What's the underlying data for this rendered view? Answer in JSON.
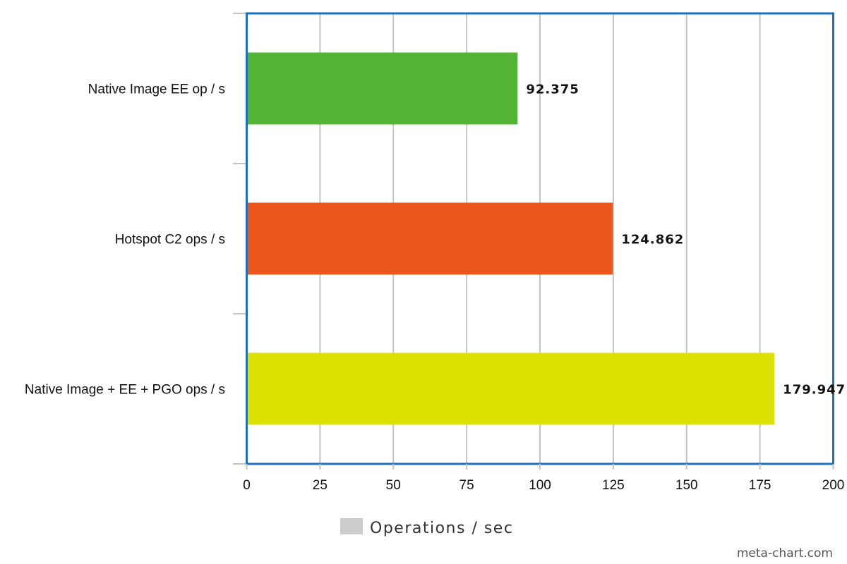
{
  "chart_data": {
    "type": "bar",
    "orientation": "horizontal",
    "categories": [
      "Native Image EE op / s",
      "Hotspot C2 ops / s",
      "Native Image + EE + PGO ops / s"
    ],
    "series": [
      {
        "name": "Operations / sec",
        "values": [
          92.375,
          124.862,
          179.947
        ],
        "value_labels": [
          "92.375",
          "124.862",
          "179.947"
        ],
        "colors": [
          "#52b434",
          "#ea561c",
          "#dde100"
        ]
      }
    ],
    "xticks": [
      "0",
      "25",
      "50",
      "75",
      "100",
      "125",
      "150",
      "175",
      "200"
    ],
    "xlim": [
      0,
      200
    ],
    "grid": true,
    "legend": {
      "label": "Operations / sec",
      "position": "bottom",
      "swatch_color": "#cccccc"
    },
    "colors": {
      "frame": "#1a6fbf",
      "grid": "#c4c4c4"
    }
  },
  "watermark": "meta-chart.com"
}
